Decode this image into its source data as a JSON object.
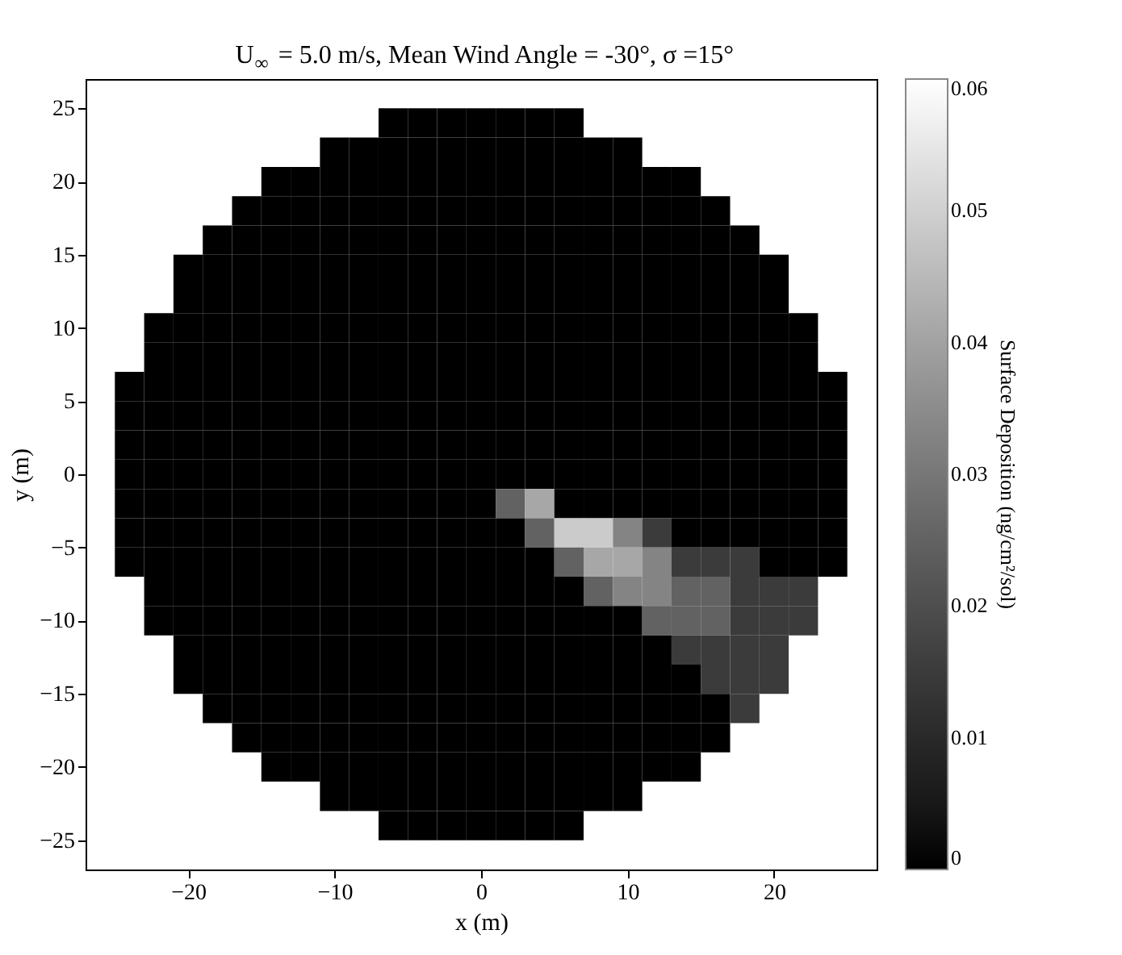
{
  "chart_data": {
    "type": "heatmap",
    "title": "U$_{∞}$ = 5.0 m/s, Mean Wind Angle = -30°, σ =15°",
    "xlabel": "x (m)",
    "ylabel": "y (m)",
    "clabel": "Surface Deposition (ng/cm²/sol)",
    "x": [
      -24,
      -22,
      -20,
      -18,
      -16,
      -14,
      -12,
      -10,
      -8,
      -6,
      -4,
      -2,
      0,
      2,
      4,
      6,
      8,
      10,
      12,
      14,
      16,
      18,
      20,
      22,
      24
    ],
    "y": [
      24,
      22,
      20,
      18,
      16,
      14,
      12,
      10,
      8,
      6,
      4,
      2,
      0,
      -2,
      -4,
      -6,
      -8,
      -10,
      -12,
      -14,
      -16,
      -18,
      -20,
      -22,
      -24
    ],
    "cells": [
      [
        null,
        null,
        null,
        null,
        null,
        null,
        null,
        null,
        null,
        0,
        0,
        0,
        0,
        0,
        0,
        0,
        null,
        null,
        null,
        null,
        null,
        null,
        null,
        null,
        null
      ],
      [
        null,
        null,
        null,
        null,
        null,
        null,
        null,
        0,
        0,
        0,
        0,
        0,
        0,
        0,
        0,
        0,
        0,
        0,
        null,
        null,
        null,
        null,
        null,
        null,
        null
      ],
      [
        null,
        null,
        null,
        null,
        null,
        0,
        0,
        0,
        0,
        0,
        0,
        0,
        0,
        0,
        0,
        0,
        0,
        0,
        0,
        0,
        null,
        null,
        null,
        null,
        null
      ],
      [
        null,
        null,
        null,
        null,
        0,
        0,
        0,
        0,
        0,
        0,
        0,
        0,
        0,
        0,
        0,
        0,
        0,
        0,
        0,
        0,
        0,
        null,
        null,
        null,
        null
      ],
      [
        null,
        null,
        null,
        0,
        0,
        0,
        0,
        0,
        0,
        0,
        0,
        0,
        0,
        0,
        0,
        0,
        0,
        0,
        0,
        0,
        0,
        0,
        null,
        null,
        null
      ],
      [
        null,
        null,
        0,
        0,
        0,
        0,
        0,
        0,
        0,
        0,
        0,
        0,
        0,
        0,
        0,
        0,
        0,
        0,
        0,
        0,
        0,
        0,
        0,
        null,
        null
      ],
      [
        null,
        null,
        0,
        0,
        0,
        0,
        0,
        0,
        0,
        0,
        0,
        0,
        0,
        0,
        0,
        0,
        0,
        0,
        0,
        0,
        0,
        0,
        0,
        null,
        null
      ],
      [
        null,
        0,
        0,
        0,
        0,
        0,
        0,
        0,
        0,
        0,
        0,
        0,
        0,
        0,
        0,
        0,
        0,
        0,
        0,
        0,
        0,
        0,
        0,
        0,
        null
      ],
      [
        null,
        0,
        0,
        0,
        0,
        0,
        0,
        0,
        0,
        0,
        0,
        0,
        0,
        0,
        0,
        0,
        0,
        0,
        0,
        0,
        0,
        0,
        0,
        0,
        null
      ],
      [
        0,
        0,
        0,
        0,
        0,
        0,
        0,
        0,
        0,
        0,
        0,
        0,
        0,
        0,
        0,
        0,
        0,
        0,
        0,
        0,
        0,
        0,
        0,
        0,
        0
      ],
      [
        0,
        0,
        0,
        0,
        0,
        0,
        0,
        0,
        0,
        0,
        0,
        0,
        0,
        0,
        0,
        0,
        0,
        0,
        0,
        0,
        0,
        0,
        0,
        0,
        0
      ],
      [
        0,
        0,
        0,
        0,
        0,
        0,
        0,
        0,
        0,
        0,
        0,
        0,
        0,
        0,
        0,
        0,
        0,
        0,
        0,
        0,
        0,
        0,
        0,
        0,
        0
      ],
      [
        0,
        0,
        0,
        0,
        0,
        0,
        0,
        0,
        0,
        0,
        0,
        0,
        0,
        0,
        0,
        0,
        0,
        0,
        0,
        0,
        0,
        0,
        0,
        0,
        0
      ],
      [
        0,
        0,
        0,
        0,
        0,
        0,
        0,
        0,
        0,
        0,
        0,
        0,
        0,
        0.025,
        0.041,
        0,
        0,
        0,
        0,
        0,
        0,
        0,
        0,
        0,
        0
      ],
      [
        0,
        0,
        0,
        0,
        0,
        0,
        0,
        0,
        0,
        0,
        0,
        0,
        0,
        0,
        0.025,
        0.049,
        0.049,
        0.033,
        0.015,
        0,
        0,
        0,
        0,
        0,
        0
      ],
      [
        0,
        0,
        0,
        0,
        0,
        0,
        0,
        0,
        0,
        0,
        0,
        0,
        0,
        0,
        0,
        0.025,
        0.041,
        0.041,
        0.033,
        0.015,
        0.015,
        0.015,
        0,
        0,
        0
      ],
      [
        null,
        0,
        0,
        0,
        0,
        0,
        0,
        0,
        0,
        0,
        0,
        0,
        0,
        0,
        0,
        0,
        0.025,
        0.033,
        0.033,
        0.025,
        0.025,
        0.015,
        0.015,
        0.015,
        null
      ],
      [
        null,
        0,
        0,
        0,
        0,
        0,
        0,
        0,
        0,
        0,
        0,
        0,
        0,
        0,
        0,
        0,
        0,
        0,
        0.025,
        0.025,
        0.025,
        0.015,
        0.015,
        0.015,
        null
      ],
      [
        null,
        null,
        0,
        0,
        0,
        0,
        0,
        0,
        0,
        0,
        0,
        0,
        0,
        0,
        0,
        0,
        0,
        0,
        0,
        0.015,
        0.015,
        0.015,
        0.015,
        null,
        null
      ],
      [
        null,
        null,
        0,
        0,
        0,
        0,
        0,
        0,
        0,
        0,
        0,
        0,
        0,
        0,
        0,
        0,
        0,
        0,
        0,
        0,
        0.015,
        0.015,
        0.015,
        null,
        null
      ],
      [
        null,
        null,
        null,
        0,
        0,
        0,
        0,
        0,
        0,
        0,
        0,
        0,
        0,
        0,
        0,
        0,
        0,
        0,
        0,
        0,
        0,
        0.015,
        null,
        null,
        null
      ],
      [
        null,
        null,
        null,
        null,
        0,
        0,
        0,
        0,
        0,
        0,
        0,
        0,
        0,
        0,
        0,
        0,
        0,
        0,
        0,
        0,
        0,
        null,
        null,
        null,
        null
      ],
      [
        null,
        null,
        null,
        null,
        null,
        0,
        0,
        0,
        0,
        0,
        0,
        0,
        0,
        0,
        0,
        0,
        0,
        0,
        0,
        0,
        null,
        null,
        null,
        null,
        null
      ],
      [
        null,
        null,
        null,
        null,
        null,
        null,
        null,
        0,
        0,
        0,
        0,
        0,
        0,
        0,
        0,
        0,
        0,
        0,
        null,
        null,
        null,
        null,
        null,
        null,
        null
      ],
      [
        null,
        null,
        null,
        null,
        null,
        null,
        null,
        null,
        null,
        0,
        0,
        0,
        0,
        0,
        0,
        0,
        null,
        null,
        null,
        null,
        null,
        null,
        null,
        null,
        null
      ]
    ],
    "xlim": [
      -27,
      27
    ],
    "xticks": [
      -20,
      -10,
      0,
      10,
      20
    ],
    "ylim": [
      -27,
      27
    ],
    "yticks": [
      -25,
      -20,
      -15,
      -10,
      -5,
      0,
      5,
      10,
      15,
      20,
      25
    ],
    "clim": [
      0,
      0.06
    ],
    "cticks": [
      0,
      0.01,
      0.02,
      0.03,
      0.04,
      0.05,
      0.06
    ]
  }
}
